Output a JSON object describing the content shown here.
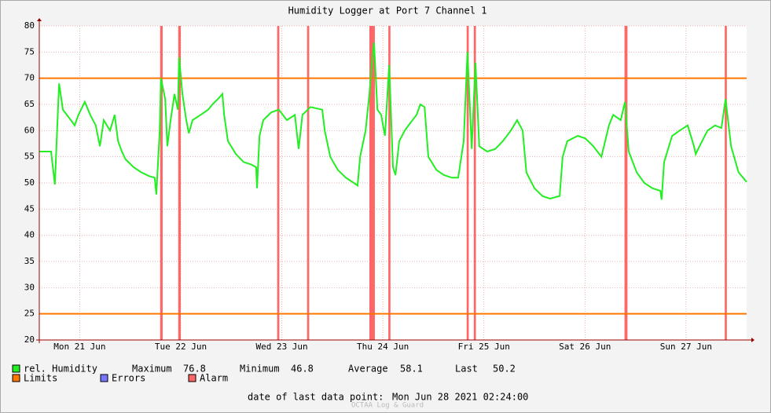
{
  "chart_data": {
    "type": "line",
    "title": "Humidity Logger at Port 7 Channel 1",
    "xlim": [
      0,
      168
    ],
    "ylim": [
      20,
      80
    ],
    "yticks": [
      20,
      25,
      30,
      35,
      40,
      45,
      50,
      55,
      60,
      65,
      70,
      75,
      80
    ],
    "xticks": [
      {
        "value": 9.6,
        "label": "Mon 21 Jun"
      },
      {
        "value": 33.6,
        "label": "Tue 22 Jun"
      },
      {
        "value": 57.6,
        "label": "Wed 23 Jun"
      },
      {
        "value": 81.6,
        "label": "Thu 24 Jun"
      },
      {
        "value": 105.6,
        "label": "Fri 25 Jun"
      },
      {
        "value": 129.6,
        "label": "Sat 26 Jun"
      },
      {
        "value": 153.6,
        "label": "Sun 27 Jun"
      }
    ],
    "grid": true,
    "series": [
      {
        "name": "rel. Humidity",
        "color": "#22ee22",
        "x": [
          0,
          2.8,
          3.7,
          4.7,
          5.6,
          7.5,
          8.4,
          9.3,
          10.8,
          12.1,
          13.4,
          14.4,
          15.3,
          16.8,
          17.9,
          18.7,
          19.6,
          20.5,
          22.4,
          24.3,
          26.1,
          27.4,
          27.8,
          28.6,
          28.9,
          29.9,
          30.4,
          31.2,
          32.1,
          32.9,
          33.2,
          34.0,
          34.9,
          35.5,
          36.4,
          38.3,
          40.1,
          41.1,
          42.4,
          43.5,
          43.9,
          44.8,
          46.7,
          48.5,
          50.4,
          51.5,
          51.7,
          52.3,
          53.2,
          55.1,
          56.9,
          58.8,
          60.7,
          61.6,
          62.5,
          64.4,
          67.2,
          67.8,
          69.1,
          70.9,
          72.8,
          74.7,
          75.6,
          76.2,
          77.5,
          78.4,
          79.0,
          79.5,
          80.3,
          81.2,
          82.1,
          83.1,
          84.0,
          84.6,
          85.5,
          86.8,
          87.7,
          89.6,
          90.5,
          91.5,
          92.4,
          94.3,
          96.1,
          98.0,
          99.5,
          100.8,
          101.7,
          102.7,
          103.6,
          104.5,
          106.4,
          108.3,
          110.1,
          112.0,
          113.5,
          114.8,
          115.7,
          117.6,
          119.5,
          121.3,
          123.6,
          124.3,
          125.4,
          127.9,
          129.7,
          131.6,
          133.5,
          135.3,
          136.3,
          138.1,
          139.1,
          140.0,
          141.9,
          143.7,
          145.6,
          147.5,
          147.8,
          148.4,
          150.3,
          152.1,
          154.0,
          155.5,
          155.9,
          156.8,
          158.7,
          160.5,
          162.0,
          163.0,
          164.3,
          166.1,
          168
        ],
        "values": [
          56,
          56,
          49.7,
          69,
          64,
          62,
          61,
          63,
          65.5,
          63,
          61,
          57,
          62,
          60,
          63,
          58,
          56,
          54.5,
          53,
          52,
          51.3,
          51,
          47.8,
          60,
          70,
          66,
          57,
          62,
          67,
          64,
          74,
          67,
          62,
          59.5,
          62,
          63,
          64,
          65,
          66,
          67,
          63,
          58,
          55.5,
          54,
          53.5,
          53,
          49,
          59,
          62,
          63.5,
          64,
          62,
          63,
          56.5,
          63,
          64.5,
          64,
          60,
          55,
          52.5,
          51,
          50,
          49.5,
          55,
          60,
          67,
          73,
          76.8,
          64,
          63,
          59,
          72.5,
          53,
          51.5,
          58,
          60,
          61,
          63,
          65,
          64.5,
          55,
          52.5,
          51.5,
          51,
          51,
          58,
          75,
          56.5,
          73,
          57,
          56,
          56.5,
          58,
          60,
          62,
          60,
          52,
          49,
          47.5,
          47,
          47.5,
          55,
          58,
          59,
          58.5,
          57,
          55,
          61,
          63,
          62,
          65.5,
          56,
          52,
          50,
          49,
          48.5,
          46.8,
          54,
          59,
          60,
          61,
          57,
          55.5,
          57,
          60,
          61,
          60.5,
          66,
          57,
          52,
          50.2
        ]
      }
    ],
    "limits": [
      70,
      25
    ],
    "alarms": [
      [
        28.7,
        29.3
      ],
      [
        33.0,
        33.6
      ],
      [
        56.5,
        57.0
      ],
      [
        63.6,
        64.1
      ],
      [
        78.4,
        79.7
      ],
      [
        82.9,
        83.4
      ],
      [
        101.5,
        102.0
      ],
      [
        103.2,
        103.7
      ],
      [
        139.0,
        139.7
      ],
      [
        162.8,
        163.3
      ]
    ],
    "legend": [
      {
        "name": "Limits",
        "color": "#ff7700"
      },
      {
        "name": "Errors",
        "color": "#7777ff"
      },
      {
        "name": "Alarm",
        "color": "#ff6666"
      }
    ],
    "stats": [
      {
        "label": "Maximum",
        "value": 76.8
      },
      {
        "label": "Minimum",
        "value": 46.8
      },
      {
        "label": "Average",
        "value": 58.1
      },
      {
        "label": "Last",
        "value": 50.2
      }
    ],
    "footer": {
      "label": "date of last data point:",
      "value": "Mon Jun 28 2021 02:24:00"
    },
    "watermark": "OCTAA Log & Guard"
  }
}
